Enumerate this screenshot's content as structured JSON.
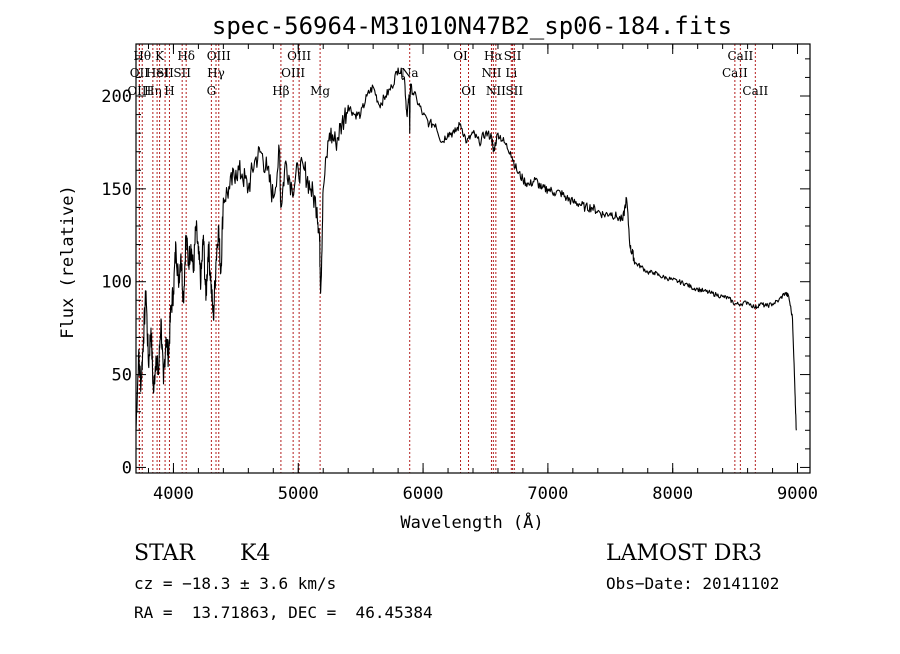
{
  "chart_data": {
    "type": "line",
    "title": "spec-56964-M31010N47B2_sp06-184.fits",
    "xlabel": "Wavelength (Å)",
    "ylabel": "Flux (relative)",
    "xlim": [
      3700,
      9100
    ],
    "ylim": [
      -3,
      228
    ],
    "xticks": [
      4000,
      5000,
      6000,
      7000,
      8000,
      9000
    ],
    "yticks": [
      0,
      50,
      100,
      150,
      200
    ],
    "series": [
      {
        "name": "flux",
        "x": [
          3700,
          3720,
          3740,
          3760,
          3780,
          3800,
          3820,
          3840,
          3860,
          3880,
          3900,
          3920,
          3940,
          3960,
          3980,
          4000,
          4020,
          4040,
          4060,
          4080,
          4100,
          4120,
          4140,
          4160,
          4180,
          4200,
          4220,
          4240,
          4260,
          4280,
          4300,
          4320,
          4340,
          4360,
          4380,
          4400,
          4450,
          4500,
          4550,
          4600,
          4650,
          4700,
          4750,
          4800,
          4850,
          4860,
          4900,
          4950,
          5000,
          5050,
          5100,
          5150,
          5170,
          5180,
          5200,
          5250,
          5300,
          5350,
          5400,
          5450,
          5500,
          5550,
          5600,
          5650,
          5700,
          5750,
          5800,
          5850,
          5870,
          5890,
          5893,
          5896,
          5900,
          5950,
          6000,
          6050,
          6100,
          6150,
          6200,
          6250,
          6300,
          6350,
          6400,
          6450,
          6500,
          6550,
          6563,
          6600,
          6650,
          6700,
          6750,
          6800,
          6850,
          6900,
          6950,
          7000,
          7050,
          7100,
          7150,
          7200,
          7250,
          7300,
          7350,
          7400,
          7450,
          7500,
          7550,
          7600,
          7630,
          7660,
          7680,
          7700,
          7750,
          7800,
          7850,
          7900,
          7950,
          8000,
          8050,
          8100,
          8150,
          8200,
          8250,
          8300,
          8350,
          8400,
          8450,
          8498,
          8542,
          8600,
          8662,
          8700,
          8750,
          8800,
          8850,
          8900,
          8930,
          8960,
          8980,
          8990
        ],
        "values": [
          20,
          60,
          45,
          70,
          95,
          55,
          75,
          40,
          60,
          50,
          80,
          45,
          70,
          60,
          85,
          95,
          120,
          100,
          115,
          90,
          125,
          110,
          120,
          105,
          130,
          115,
          100,
          125,
          90,
          120,
          100,
          80,
          110,
          130,
          105,
          145,
          150,
          160,
          158,
          150,
          165,
          170,
          160,
          145,
          170,
          140,
          165,
          150,
          160,
          160,
          150,
          140,
          125,
          95,
          150,
          180,
          175,
          185,
          195,
          190,
          190,
          200,
          205,
          195,
          200,
          205,
          215,
          210,
          190,
          200,
          180,
          200,
          205,
          198,
          190,
          185,
          185,
          175,
          180,
          180,
          185,
          175,
          180,
          175,
          180,
          178,
          170,
          180,
          175,
          170,
          160,
          155,
          152,
          155,
          150,
          150,
          148,
          148,
          145,
          143,
          142,
          140,
          140,
          138,
          136,
          137,
          135,
          133,
          145,
          118,
          115,
          110,
          108,
          105,
          105,
          103,
          102,
          101,
          100,
          99,
          97,
          96,
          95,
          94,
          93,
          92,
          91,
          88,
          88,
          89,
          86,
          88,
          87,
          88,
          90,
          94,
          92,
          80,
          40,
          20
        ]
      }
    ],
    "lines": [
      {
        "x": 3750,
        "label": "Hθ",
        "row": 0
      },
      {
        "x": 3727,
        "label": "OII",
        "row": 1
      },
      {
        "x": 3727,
        "label": "OIII",
        "row": 2
      },
      {
        "x": 3835,
        "label": "Hη",
        "row": 2
      },
      {
        "x": 3869,
        "label": "HeI",
        "row": 1
      },
      {
        "x": 3889,
        "label": "K",
        "row": 0
      },
      {
        "x": 3933,
        "label": "SII",
        "row": 1
      },
      {
        "x": 3968,
        "label": "H",
        "row": 2
      },
      {
        "x": 4102,
        "label": "Hδ",
        "row": 0
      },
      {
        "x": 4070,
        "label": "SII",
        "row": 1
      },
      {
        "x": 4304,
        "label": "G",
        "row": 2
      },
      {
        "x": 4341,
        "label": "Hγ",
        "row": 1
      },
      {
        "x": 4363,
        "label": "OIII",
        "row": 0
      },
      {
        "x": 4861,
        "label": "Hβ",
        "row": 2
      },
      {
        "x": 4959,
        "label": "OIII",
        "row": 1
      },
      {
        "x": 5007,
        "label": "OIII",
        "row": 0
      },
      {
        "x": 5175,
        "label": "Mg",
        "row": 2
      },
      {
        "x": 5893,
        "label": "Na",
        "row": 1
      },
      {
        "x": 6300,
        "label": "OI",
        "row": 0
      },
      {
        "x": 6364,
        "label": "OI",
        "row": 2
      },
      {
        "x": 6548,
        "label": "NII",
        "row": 1
      },
      {
        "x": 6563,
        "label": "Hα",
        "row": 0
      },
      {
        "x": 6583,
        "label": "NII",
        "row": 2
      },
      {
        "x": 6707,
        "label": "Li",
        "row": 1
      },
      {
        "x": 6717,
        "label": "SII",
        "row": 0
      },
      {
        "x": 6731,
        "label": "SII",
        "row": 2
      },
      {
        "x": 8498,
        "label": "CaII",
        "row": 1
      },
      {
        "x": 8542,
        "label": "CaII",
        "row": 0
      },
      {
        "x": 8662,
        "label": "CaII",
        "row": 2
      }
    ],
    "line_color": "#b41e1e",
    "info": {
      "class": "STAR",
      "subclass": "K4",
      "survey": "LAMOST DR3",
      "cz": "cz = −18.3 ± 3.6 km/s",
      "obs_date": "Obs−Date: 20141102",
      "radec": "RA =  13.71863, DEC =  46.45384"
    }
  }
}
